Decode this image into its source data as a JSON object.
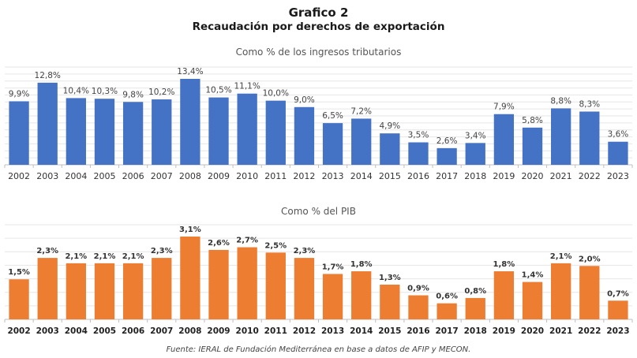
{
  "title": "Grafico 2",
  "subtitle": "Recaudación por derechos de exportación",
  "footer": "Fuente: IERAL de Fundación Mediterránea en base a datos de AFIP y MECON.",
  "colors": {
    "blue": "#4472C4",
    "orange": "#ED7D31"
  },
  "chart_data": [
    {
      "type": "bar",
      "title": "Como % de los ingresos tributarios",
      "xlabel": "",
      "ylabel": "",
      "categories": [
        "2002",
        "2003",
        "2004",
        "2005",
        "2006",
        "2007",
        "2008",
        "2009",
        "2010",
        "2011",
        "2012",
        "2013",
        "2014",
        "2015",
        "2016",
        "2017",
        "2018",
        "2019",
        "2020",
        "2021",
        "2022",
        "2023"
      ],
      "values": [
        9.9,
        12.8,
        10.4,
        10.3,
        9.8,
        10.2,
        13.4,
        10.5,
        11.1,
        10.0,
        9.0,
        6.5,
        7.2,
        4.9,
        3.5,
        2.6,
        3.4,
        7.9,
        5.8,
        8.8,
        8.3,
        3.6
      ],
      "labels": [
        "9,9%",
        "12,8%",
        "10,4%",
        "10,3%",
        "9,8%",
        "10,2%",
        "13,4%",
        "10,5%",
        "11,1%",
        "10,0%",
        "9,0%",
        "6,5%",
        "7,2%",
        "4,9%",
        "3,5%",
        "2,6%",
        "3,4%",
        "7,9%",
        "5,8%",
        "8,8%",
        "8,3%",
        "3,6%"
      ],
      "ylim": [
        0,
        15
      ],
      "grid": true,
      "color": "#4472C4"
    },
    {
      "type": "bar",
      "title": "Como % del PIB",
      "xlabel": "",
      "ylabel": "",
      "categories": [
        "2002",
        "2003",
        "2004",
        "2005",
        "2006",
        "2007",
        "2008",
        "2009",
        "2010",
        "2011",
        "2012",
        "2013",
        "2014",
        "2015",
        "2016",
        "2017",
        "2018",
        "2019",
        "2020",
        "2021",
        "2022",
        "2023"
      ],
      "values": [
        1.5,
        2.3,
        2.1,
        2.1,
        2.1,
        2.3,
        3.1,
        2.6,
        2.7,
        2.5,
        2.3,
        1.7,
        1.8,
        1.3,
        0.9,
        0.6,
        0.8,
        1.8,
        1.4,
        2.1,
        2.0,
        0.7
      ],
      "labels": [
        "1,5%",
        "2,3%",
        "2,1%",
        "2,1%",
        "2,1%",
        "2,3%",
        "3,1%",
        "2,6%",
        "2,7%",
        "2,5%",
        "2,3%",
        "1,7%",
        "1,8%",
        "1,3%",
        "0,9%",
        "0,6%",
        "0,8%",
        "1,8%",
        "1,4%",
        "2,1%",
        "2,0%",
        "0,7%"
      ],
      "ylim": [
        0,
        3.5
      ],
      "grid": true,
      "color": "#ED7D31"
    }
  ]
}
